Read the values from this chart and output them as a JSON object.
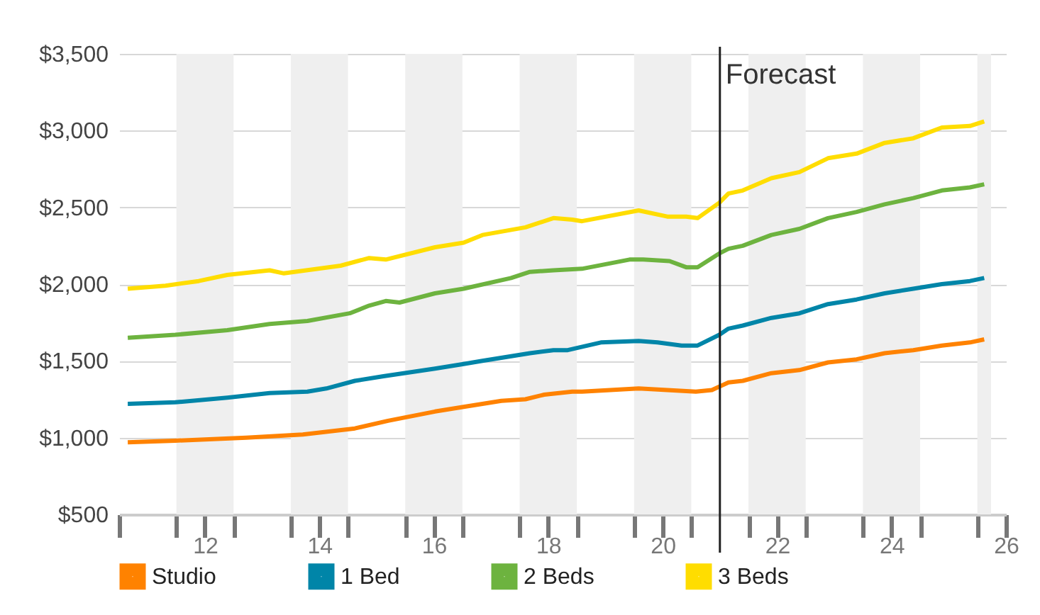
{
  "chart_data": {
    "type": "line",
    "xlim": [
      10.5,
      26
    ],
    "ylim": [
      500,
      3500
    ],
    "yticks": [
      {
        "value": 500,
        "label": "$500"
      },
      {
        "value": 1000,
        "label": "$1,000"
      },
      {
        "value": 1500,
        "label": "$1,500"
      },
      {
        "value": 2000,
        "label": "$2,000"
      },
      {
        "value": 2500,
        "label": "$2,500"
      },
      {
        "value": 3000,
        "label": "$3,000"
      },
      {
        "value": 3500,
        "label": "$3,500"
      }
    ],
    "xticks": [
      {
        "value": 10.5,
        "label": null
      },
      {
        "value": 11.5,
        "label": null
      },
      12,
      {
        "value": 12.5,
        "label": null
      },
      {
        "value": 13.5,
        "label": null
      },
      14,
      {
        "value": 14.5,
        "label": null
      },
      {
        "value": 15.5,
        "label": null
      },
      16,
      {
        "value": 16.5,
        "label": null
      },
      {
        "value": 17.5,
        "label": null
      },
      18,
      {
        "value": 18.5,
        "label": null
      },
      {
        "value": 19.5,
        "label": null
      },
      20,
      {
        "value": 20.5,
        "label": null
      },
      {
        "value": 21.5,
        "label": null
      },
      22,
      {
        "value": 22.5,
        "label": null
      },
      {
        "value": 23.5,
        "label": null
      },
      24,
      {
        "value": 24.5,
        "label": null
      },
      {
        "value": 25.5,
        "label": null
      },
      26
    ],
    "grid": "y",
    "legend": "bottom",
    "bands": [
      {
        "axis": "x",
        "from": 11.5,
        "to": 12.5,
        "color": "#efefef"
      },
      {
        "axis": "x",
        "from": 13.5,
        "to": 14.5,
        "color": "#efefef"
      },
      {
        "axis": "x",
        "from": 15.5,
        "to": 16.5,
        "color": "#efefef"
      },
      {
        "axis": "x",
        "from": 17.5,
        "to": 18.5,
        "color": "#efefef"
      },
      {
        "axis": "x",
        "from": 19.5,
        "to": 20.5,
        "color": "#efefef"
      },
      {
        "axis": "x",
        "from": 21.5,
        "to": 22.5,
        "color": "#efefef"
      },
      {
        "axis": "x",
        "from": 23.5,
        "to": 24.5,
        "color": "#efefef"
      },
      {
        "axis": "x",
        "from": 25.5,
        "to": 25.74,
        "color": "#efefef"
      }
    ],
    "ref_lines": [
      {
        "axis": "x",
        "value": 21,
        "label": "Forecast",
        "color": "#222222"
      }
    ],
    "series": [
      {
        "name": "Studio",
        "color": "#ff8200",
        "x": [
          10.65,
          11.48,
          12.72,
          13.71,
          14.62,
          15.2,
          16.02,
          16.52,
          17.18,
          17.6,
          17.93,
          18.42,
          18.59,
          19.58,
          20.08,
          20.58,
          20.86,
          21.15,
          21.4,
          21.9,
          22.39,
          22.89,
          23.39,
          23.88,
          24.38,
          24.88,
          25.37,
          25.62
        ],
        "values": [
          970,
          980,
          1000,
          1020,
          1060,
          1110,
          1170,
          1200,
          1240,
          1250,
          1280,
          1300,
          1300,
          1320,
          1310,
          1300,
          1310,
          1360,
          1370,
          1420,
          1440,
          1490,
          1510,
          1550,
          1570,
          1600,
          1620,
          1640
        ]
      },
      {
        "name": "1 Bed",
        "color": "#0085a8",
        "x": [
          10.65,
          11.48,
          12.39,
          13.13,
          13.79,
          14.12,
          14.62,
          15.12,
          16.02,
          16.52,
          16.85,
          17.68,
          18.09,
          18.34,
          18.92,
          19.58,
          19.91,
          20.33,
          20.61,
          20.99,
          21.15,
          21.4,
          21.9,
          22.39,
          22.89,
          23.39,
          23.88,
          24.38,
          24.88,
          25.37,
          25.62
        ],
        "values": [
          1220,
          1230,
          1260,
          1290,
          1300,
          1320,
          1370,
          1400,
          1450,
          1480,
          1500,
          1550,
          1570,
          1570,
          1620,
          1630,
          1620,
          1600,
          1600,
          1670,
          1710,
          1730,
          1780,
          1810,
          1870,
          1900,
          1940,
          1970,
          2000,
          2020,
          2040
        ]
      },
      {
        "name": "2 Beds",
        "color": "#6db33f",
        "x": [
          10.65,
          11.48,
          12.39,
          13.13,
          13.79,
          14.53,
          14.87,
          15.16,
          15.4,
          16.02,
          16.52,
          17.35,
          17.68,
          18.09,
          18.59,
          19.42,
          19.66,
          20.12,
          20.41,
          20.61,
          20.99,
          21.15,
          21.4,
          21.9,
          22.39,
          22.89,
          23.39,
          23.88,
          24.38,
          24.88,
          25.37,
          25.62
        ],
        "values": [
          1650,
          1670,
          1700,
          1740,
          1760,
          1810,
          1860,
          1890,
          1880,
          1940,
          1970,
          2040,
          2080,
          2090,
          2100,
          2160,
          2160,
          2150,
          2110,
          2110,
          2200,
          2230,
          2250,
          2320,
          2360,
          2430,
          2470,
          2520,
          2560,
          2610,
          2630,
          2650
        ]
      },
      {
        "name": "3 Beds",
        "color": "#ffdd00",
        "x": [
          10.65,
          11.31,
          11.89,
          12.39,
          13.13,
          13.38,
          14.37,
          14.87,
          15.16,
          16.02,
          16.52,
          16.85,
          17.6,
          18.09,
          18.42,
          18.59,
          19.58,
          20.08,
          20.41,
          20.61,
          20.99,
          21.15,
          21.4,
          21.9,
          22.39,
          22.89,
          23.39,
          23.88,
          24.38,
          24.88,
          25.37,
          25.62
        ],
        "values": [
          1970,
          1990,
          2020,
          2060,
          2090,
          2070,
          2120,
          2170,
          2160,
          2240,
          2270,
          2320,
          2370,
          2430,
          2420,
          2410,
          2480,
          2440,
          2440,
          2430,
          2530,
          2590,
          2610,
          2690,
          2730,
          2820,
          2850,
          2920,
          2950,
          3020,
          3030,
          3060
        ]
      }
    ]
  }
}
